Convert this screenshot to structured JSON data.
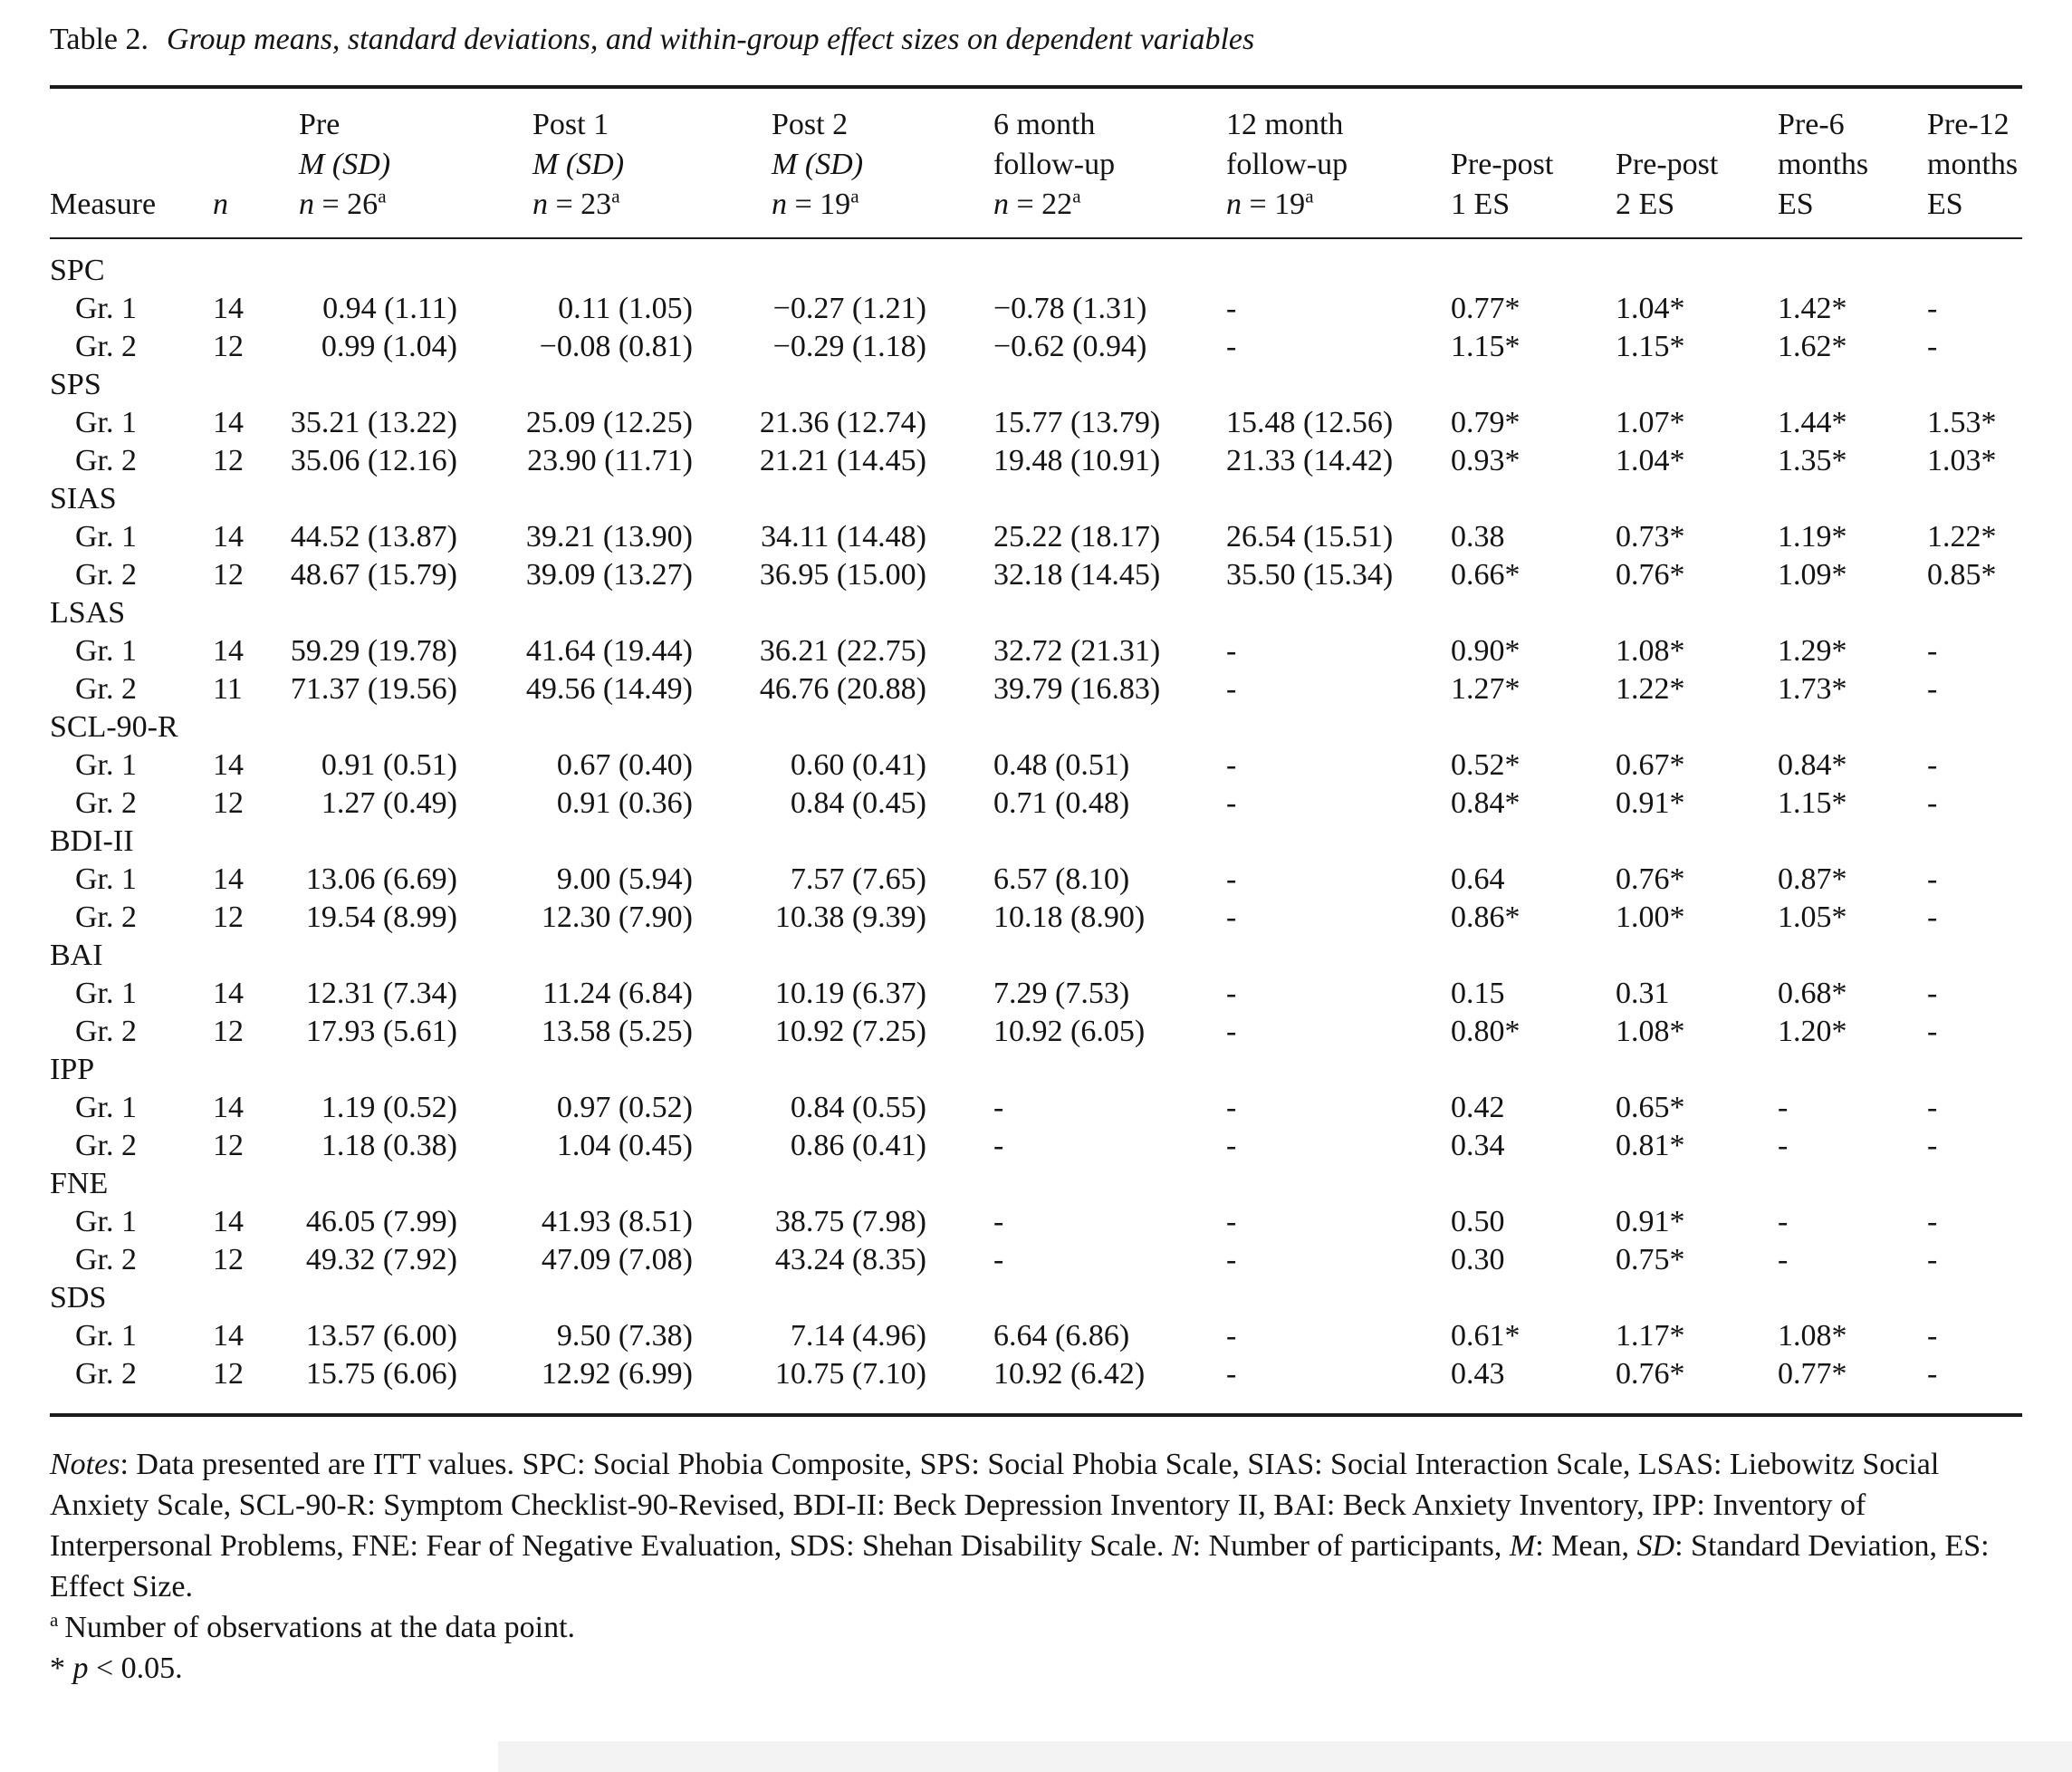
{
  "page": {
    "title_label": "Table 2.",
    "title_caption": "Group means, standard deviations, and within-group effect sizes on dependent variables"
  },
  "table": {
    "header": {
      "measure": "Measure",
      "n": "n",
      "cols": [
        {
          "l1": "Pre",
          "l2": "M (SD)",
          "n_prefix": "n",
          "n_rest": " = 26",
          "sup": "a"
        },
        {
          "l1": "Post 1",
          "l2": "M (SD)",
          "n_prefix": "n",
          "n_rest": " = 23",
          "sup": "a"
        },
        {
          "l1": "Post 2",
          "l2": "M (SD)",
          "n_prefix": "n",
          "n_rest": " = 19",
          "sup": "a"
        },
        {
          "l1": "6 month",
          "l2": "follow-up",
          "n_prefix": "n",
          "n_rest": " = 22",
          "sup": "a"
        },
        {
          "l1": "12 month",
          "l2": "follow-up",
          "n_prefix": "n",
          "n_rest": " = 19",
          "sup": "a"
        },
        {
          "l2": "Pre-post",
          "l3": "1 ES"
        },
        {
          "l2": "Pre-post",
          "l3": "2 ES"
        },
        {
          "l1": "Pre-6",
          "l2": "months",
          "l3": "ES"
        },
        {
          "l1": "Pre-12",
          "l2": "months",
          "l3": "ES"
        }
      ]
    },
    "sections": [
      {
        "name": "SPC",
        "rows": [
          {
            "label": "Gr. 1",
            "n": "14",
            "cells": [
              "0.94 (1.11)",
              "0.11 (1.05)",
              "−0.27 (1.21)",
              "−0.78 (1.31)",
              "-",
              "0.77*",
              "1.04*",
              "1.42*",
              "-"
            ]
          },
          {
            "label": "Gr. 2",
            "n": "12",
            "cells": [
              "0.99 (1.04)",
              "−0.08 (0.81)",
              "−0.29 (1.18)",
              "−0.62 (0.94)",
              "-",
              "1.15*",
              "1.15*",
              "1.62*",
              "-"
            ]
          }
        ]
      },
      {
        "name": "SPS",
        "rows": [
          {
            "label": "Gr. 1",
            "n": "14",
            "cells": [
              "35.21 (13.22)",
              "25.09 (12.25)",
              "21.36 (12.74)",
              "15.77 (13.79)",
              "15.48 (12.56)",
              "0.79*",
              "1.07*",
              "1.44*",
              "1.53*"
            ]
          },
          {
            "label": "Gr. 2",
            "n": "12",
            "cells": [
              "35.06 (12.16)",
              "23.90 (11.71)",
              "21.21 (14.45)",
              "19.48 (10.91)",
              "21.33 (14.42)",
              "0.93*",
              "1.04*",
              "1.35*",
              "1.03*"
            ]
          }
        ]
      },
      {
        "name": "SIAS",
        "rows": [
          {
            "label": "Gr. 1",
            "n": "14",
            "cells": [
              "44.52 (13.87)",
              "39.21 (13.90)",
              "34.11 (14.48)",
              "25.22 (18.17)",
              "26.54 (15.51)",
              "0.38",
              "0.73*",
              "1.19*",
              "1.22*"
            ]
          },
          {
            "label": "Gr. 2",
            "n": "12",
            "cells": [
              "48.67 (15.79)",
              "39.09 (13.27)",
              "36.95 (15.00)",
              "32.18 (14.45)",
              "35.50 (15.34)",
              "0.66*",
              "0.76*",
              "1.09*",
              "0.85*"
            ]
          }
        ]
      },
      {
        "name": "LSAS",
        "rows": [
          {
            "label": "Gr. 1",
            "n": "14",
            "cells": [
              "59.29 (19.78)",
              "41.64 (19.44)",
              "36.21 (22.75)",
              "32.72 (21.31)",
              "-",
              "0.90*",
              "1.08*",
              "1.29*",
              "-"
            ]
          },
          {
            "label": "Gr. 2",
            "n": "11",
            "cells": [
              "71.37 (19.56)",
              "49.56 (14.49)",
              "46.76 (20.88)",
              "39.79 (16.83)",
              "-",
              "1.27*",
              "1.22*",
              "1.73*",
              "-"
            ]
          }
        ]
      },
      {
        "name": "SCL-90-R",
        "rows": [
          {
            "label": "Gr. 1",
            "n": "14",
            "cells": [
              "0.91 (0.51)",
              "0.67 (0.40)",
              "0.60 (0.41)",
              "0.48 (0.51)",
              "-",
              "0.52*",
              "0.67*",
              "0.84*",
              "-"
            ]
          },
          {
            "label": "Gr. 2",
            "n": "12",
            "cells": [
              "1.27 (0.49)",
              "0.91 (0.36)",
              "0.84 (0.45)",
              "0.71 (0.48)",
              "-",
              "0.84*",
              "0.91*",
              "1.15*",
              "-"
            ]
          }
        ]
      },
      {
        "name": "BDI-II",
        "rows": [
          {
            "label": "Gr. 1",
            "n": "14",
            "cells": [
              "13.06 (6.69)",
              "9.00 (5.94)",
              "7.57 (7.65)",
              "6.57 (8.10)",
              "-",
              "0.64",
              "0.76*",
              "0.87*",
              "-"
            ]
          },
          {
            "label": "Gr. 2",
            "n": "12",
            "cells": [
              "19.54 (8.99)",
              "12.30 (7.90)",
              "10.38 (9.39)",
              "10.18 (8.90)",
              "-",
              "0.86*",
              "1.00*",
              "1.05*",
              "-"
            ]
          }
        ]
      },
      {
        "name": "BAI",
        "rows": [
          {
            "label": "Gr. 1",
            "n": "14",
            "cells": [
              "12.31 (7.34)",
              "11.24 (6.84)",
              "10.19 (6.37)",
              "7.29 (7.53)",
              "-",
              "0.15",
              "0.31",
              "0.68*",
              "-"
            ]
          },
          {
            "label": "Gr. 2",
            "n": "12",
            "cells": [
              "17.93 (5.61)",
              "13.58 (5.25)",
              "10.92 (7.25)",
              "10.92 (6.05)",
              "-",
              "0.80*",
              "1.08*",
              "1.20*",
              "-"
            ]
          }
        ]
      },
      {
        "name": "IPP",
        "rows": [
          {
            "label": "Gr. 1",
            "n": "14",
            "cells": [
              "1.19 (0.52)",
              "0.97 (0.52)",
              "0.84 (0.55)",
              "-",
              "-",
              "0.42",
              "0.65*",
              "-",
              "-"
            ]
          },
          {
            "label": "Gr. 2",
            "n": "12",
            "cells": [
              "1.18 (0.38)",
              "1.04 (0.45)",
              "0.86 (0.41)",
              "-",
              "-",
              "0.34",
              "0.81*",
              "-",
              "-"
            ]
          }
        ]
      },
      {
        "name": "FNE",
        "rows": [
          {
            "label": "Gr. 1",
            "n": "14",
            "cells": [
              "46.05 (7.99)",
              "41.93 (8.51)",
              "38.75 (7.98)",
              "-",
              "-",
              "0.50",
              "0.91*",
              "-",
              "-"
            ]
          },
          {
            "label": "Gr. 2",
            "n": "12",
            "cells": [
              "49.32 (7.92)",
              "47.09 (7.08)",
              "43.24 (8.35)",
              "-",
              "-",
              "0.30",
              "0.75*",
              "-",
              "-"
            ]
          }
        ]
      },
      {
        "name": "SDS",
        "rows": [
          {
            "label": "Gr. 1",
            "n": "14",
            "cells": [
              "13.57 (6.00)",
              "9.50 (7.38)",
              "7.14 (4.96)",
              "6.64 (6.86)",
              "-",
              "0.61*",
              "1.17*",
              "1.08*",
              "-"
            ]
          },
          {
            "label": "Gr. 2",
            "n": "12",
            "cells": [
              "15.75 (6.06)",
              "12.92 (6.99)",
              "10.75 (7.10)",
              "10.92 (6.42)",
              "-",
              "0.43",
              "0.76*",
              "0.77*",
              "-"
            ]
          }
        ]
      }
    ]
  },
  "notes": {
    "lines": [
      {
        "segments": [
          {
            "t": "Notes",
            "i": true
          },
          {
            "t": ": Data presented are ITT values. SPC: Social Phobia Composite, SPS: Social Phobia Scale, SIAS: Social Interaction Scale, LSAS: Liebowitz Social Anxiety Scale, SCL-90-R: Symptom Checklist-90-Revised, BDI-II: Beck Depression Inventory II, BAI: Beck Anxiety Inventory, IPP: Inventory of Interpersonal Problems, FNE: Fear of Negative Evaluation, SDS: Shehan Disability Scale. ",
            "i": false
          },
          {
            "t": "N",
            "i": true
          },
          {
            "t": ": Number of participants, ",
            "i": false
          },
          {
            "t": "M",
            "i": true
          },
          {
            "t": ": Mean, ",
            "i": false
          },
          {
            "t": "SD",
            "i": true
          },
          {
            "t": ": Standard Deviation, ES: Effect Size.",
            "i": false
          }
        ]
      },
      {
        "sup": "a",
        "segments": [
          {
            "t": "Number of observations at the data point.",
            "i": false
          }
        ]
      },
      {
        "segments": [
          {
            "t": "* ",
            "i": false
          },
          {
            "t": "p",
            "i": true
          },
          {
            "t": " < 0.05.",
            "i": false
          }
        ]
      }
    ]
  },
  "colors": {
    "text": "#141414",
    "rule": "#1a1a1a",
    "page_background": "#ffffff",
    "edge_band": "#f3f3f3"
  }
}
